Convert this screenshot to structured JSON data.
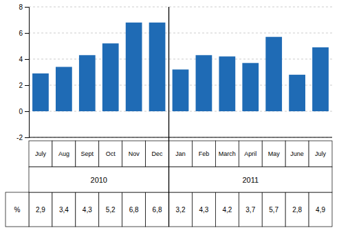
{
  "chart_data": {
    "type": "bar",
    "categories": [
      "July",
      "Aug",
      "Sept",
      "Oct",
      "Nov",
      "Dec",
      "Jan",
      "Feb",
      "March",
      "April",
      "May",
      "June",
      "July"
    ],
    "values": [
      2.9,
      3.4,
      4.3,
      5.2,
      6.8,
      6.8,
      3.2,
      4.3,
      4.2,
      3.7,
      5.7,
      2.8,
      4.9
    ],
    "value_labels": [
      "2,9",
      "3,4",
      "4,3",
      "5,2",
      "6,8",
      "6,8",
      "3,2",
      "4,3",
      "4,2",
      "3,7",
      "5,7",
      "2,8",
      "4,9"
    ],
    "table_label": "%",
    "groups": [
      {
        "label": "2010",
        "start": 0,
        "end": 5
      },
      {
        "label": "2011",
        "start": 6,
        "end": 12
      }
    ],
    "color": "#1F6BB5",
    "ylim": [
      -2,
      8
    ],
    "yticks": [
      -2,
      0,
      2,
      4,
      6,
      8
    ],
    "grid": true
  }
}
